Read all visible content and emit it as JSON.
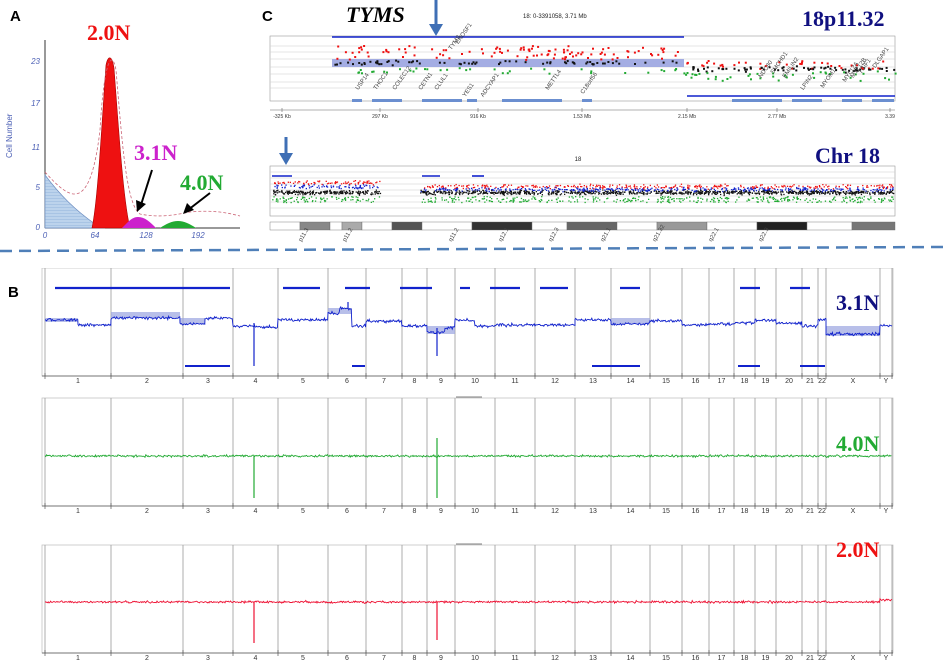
{
  "colors": {
    "red": "#ee1111",
    "magenta": "#cc22cc",
    "green": "#22aa33",
    "blue": "#1122cc",
    "navy": "#101080",
    "divider": "#4f7fb8",
    "histogram_fill": "#bcd3ec"
  },
  "panel_a": {
    "letter": "A",
    "y_axis_label": "Cell Number",
    "y_ticks": [
      "0",
      "5",
      "11",
      "17",
      "23"
    ],
    "x_ticks": [
      "0",
      "64",
      "128",
      "192"
    ],
    "peak_labels": [
      "2.0N",
      "3.1N",
      "4.0N"
    ]
  },
  "panel_c": {
    "letter": "C",
    "gene_label": "TYMS",
    "region_label": "18p11.32",
    "chromosome_label": "Chr 18",
    "coordinate_readout": "18: 0-3391058, 3.71 Mb",
    "track_center_label": "18",
    "x_ticks": [
      "-325 Kb",
      "297 Kb",
      "916 Kb",
      "1.53 Mb",
      "2.15 Mb",
      "2.77 Mb",
      "3.39"
    ],
    "genes": [
      "USP14",
      "THOC1",
      "COLEC12",
      "CETN1",
      "CLUL1",
      "TYMS",
      "ENOSF1",
      "YES1",
      "ADCYAP1",
      "METTL4",
      "NDC80",
      "SMCHD1",
      "EMILIN2",
      "LPIN2",
      "MYOM1",
      "MYL12A",
      "MYL12B",
      "TGIF1",
      "DLGAP1",
      "C18orf56"
    ],
    "cytobands": [
      "p11.3",
      "p11.2",
      "q11.2",
      "q12.1",
      "q12.3",
      "q21.1",
      "q21.32",
      "q22.1",
      "q22.3"
    ]
  },
  "panel_b": {
    "letter": "B",
    "tracks": [
      {
        "label": "3.1N",
        "color": "#1122cc",
        "label_color": "#101080"
      },
      {
        "label": "4.0N",
        "color": "#22aa33",
        "label_color": "#22aa33"
      },
      {
        "label": "2.0N",
        "color": "#ee1133",
        "label_color": "#ee1111"
      }
    ],
    "chromosomes": [
      "1",
      "2",
      "3",
      "4",
      "5",
      "6",
      "7",
      "8",
      "9",
      "10",
      "11",
      "12",
      "13",
      "14",
      "15",
      "16",
      "17",
      "18",
      "19",
      "20",
      "21",
      "22",
      "X",
      "Y"
    ]
  }
}
